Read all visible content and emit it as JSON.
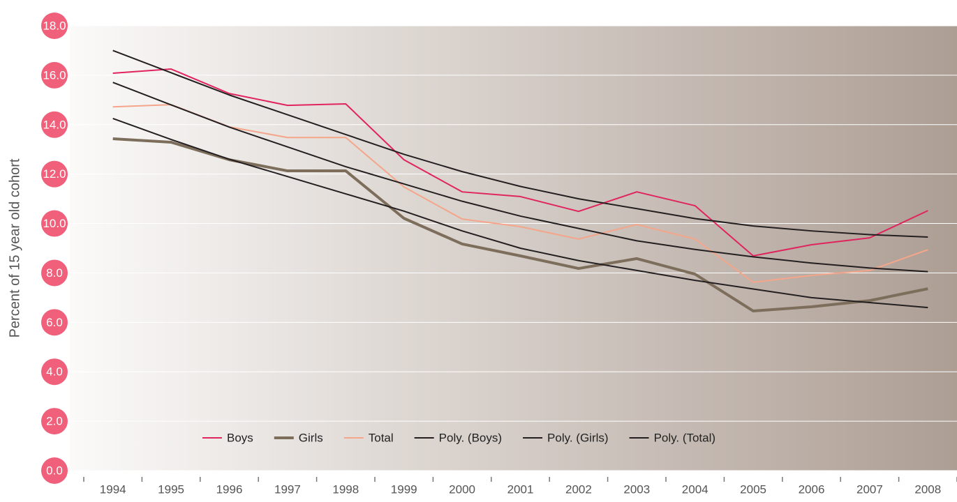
{
  "chart_data": {
    "type": "line",
    "y_label": "Percent of 15 year old cohort",
    "categories": [
      "1994",
      "1995",
      "1996",
      "1997",
      "1998",
      "1999",
      "2000",
      "2001",
      "2002",
      "2003",
      "2004",
      "2005",
      "2006",
      "2007",
      "2008"
    ],
    "ylim": [
      0,
      18
    ],
    "yticks": [
      {
        "value": 0,
        "label": "0.0"
      },
      {
        "value": 2,
        "label": "2.0"
      },
      {
        "value": 4,
        "label": "4.0"
      },
      {
        "value": 6,
        "label": "6.0"
      },
      {
        "value": 8,
        "label": "8.0"
      },
      {
        "value": 10,
        "label": "10.0"
      },
      {
        "value": 12,
        "label": "12.0"
      },
      {
        "value": 14,
        "label": "14.0"
      },
      {
        "value": 16,
        "label": "16.0"
      },
      {
        "value": 18,
        "label": "18.0"
      }
    ],
    "grid": true,
    "series": [
      {
        "name": "Boys",
        "color": "#e0245e",
        "width": 2,
        "values": [
          16.08,
          16.25,
          15.26,
          14.78,
          14.84,
          12.58,
          11.28,
          11.09,
          10.49,
          11.28,
          10.72,
          8.69,
          9.14,
          9.42,
          10.52
        ]
      },
      {
        "name": "Girls",
        "color": "#7d6e5c",
        "width": 4,
        "values": [
          13.43,
          13.29,
          12.58,
          12.13,
          12.13,
          10.21,
          9.17,
          8.69,
          8.18,
          8.58,
          7.95,
          6.46,
          6.63,
          6.88,
          7.36
        ]
      },
      {
        "name": "Total",
        "color": "#f4a58a",
        "width": 2,
        "values": [
          14.72,
          14.81,
          13.91,
          13.48,
          13.48,
          11.48,
          10.18,
          9.87,
          9.37,
          9.96,
          9.37,
          7.62,
          7.9,
          8.1,
          8.94
        ]
      },
      {
        "name": "Poly. (Boys)",
        "color": "#231f20",
        "width": 2,
        "values": [
          17.0,
          16.1,
          15.2,
          14.4,
          13.6,
          12.8,
          12.1,
          11.5,
          11.0,
          10.6,
          10.2,
          9.9,
          9.7,
          9.55,
          9.45
        ]
      },
      {
        "name": "Poly. (Girls)",
        "color": "#231f20",
        "width": 2,
        "values": [
          14.25,
          13.4,
          12.6,
          11.9,
          11.2,
          10.5,
          9.7,
          9.0,
          8.5,
          8.1,
          7.7,
          7.35,
          7.0,
          6.8,
          6.6
        ]
      },
      {
        "name": "Poly. (Total)",
        "color": "#231f20",
        "width": 2,
        "values": [
          15.71,
          14.8,
          13.9,
          13.1,
          12.3,
          11.6,
          10.9,
          10.3,
          9.8,
          9.3,
          8.95,
          8.65,
          8.4,
          8.2,
          8.05
        ]
      }
    ]
  }
}
